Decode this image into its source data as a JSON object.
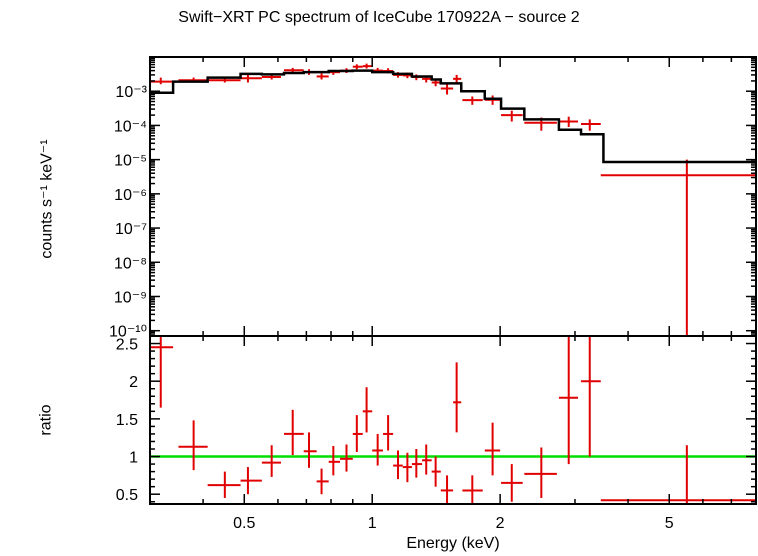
{
  "title": "Swift−XRT PC spectrum of IceCube 170922A − source 2",
  "colors": {
    "data": "#e00000",
    "model": "#000000",
    "unity_line": "#00dd00",
    "axes": "#000000"
  },
  "chart_data": [
    {
      "type": "scatter",
      "panel": "spectrum",
      "xlabel": "Energy (keV)",
      "ylabel": "counts s⁻¹ keV⁻¹",
      "xscale": "log",
      "yscale": "log",
      "xlim": [
        0.3,
        8.0
      ],
      "ylim": [
        7e-11,
        0.01
      ],
      "y_tick_values": [
        0.001,
        0.0001,
        1e-05,
        1e-06,
        1e-07,
        1e-08,
        1e-09,
        1e-10
      ],
      "y_tick_labels": [
        "10⁻³",
        "10⁻⁴",
        "10⁻⁵",
        "10⁻⁶",
        "10⁻⁷",
        "10⁻⁸",
        "10⁻⁹",
        "10⁻¹⁰"
      ],
      "series": [
        {
          "role": "data",
          "points": [
            {
              "x": 0.318,
              "xlo": 0.3,
              "xhi": 0.34,
              "y": 0.0019,
              "ylo": 0.0016,
              "yhi": 0.0025
            },
            {
              "x": 0.38,
              "xlo": 0.35,
              "xhi": 0.41,
              "y": 0.0021,
              "ylo": 0.0018,
              "yhi": 0.0025
            },
            {
              "x": 0.45,
              "xlo": 0.41,
              "xhi": 0.49,
              "y": 0.0021,
              "ylo": 0.0018,
              "yhi": 0.0025
            },
            {
              "x": 0.51,
              "xlo": 0.49,
              "xhi": 0.55,
              "y": 0.0024,
              "ylo": 0.0018,
              "yhi": 0.0031
            },
            {
              "x": 0.58,
              "xlo": 0.55,
              "xhi": 0.61,
              "y": 0.0026,
              "ylo": 0.0022,
              "yhi": 0.0032
            },
            {
              "x": 0.65,
              "xlo": 0.62,
              "xhi": 0.69,
              "y": 0.0041,
              "ylo": 0.0034,
              "yhi": 0.0048
            },
            {
              "x": 0.71,
              "xlo": 0.69,
              "xhi": 0.74,
              "y": 0.0036,
              "ylo": 0.003,
              "yhi": 0.0044
            },
            {
              "x": 0.76,
              "xlo": 0.74,
              "xhi": 0.79,
              "y": 0.0027,
              "ylo": 0.0022,
              "yhi": 0.0033
            },
            {
              "x": 0.81,
              "xlo": 0.79,
              "xhi": 0.84,
              "y": 0.0036,
              "ylo": 0.003,
              "yhi": 0.0042
            },
            {
              "x": 0.87,
              "xlo": 0.84,
              "xhi": 0.9,
              "y": 0.004,
              "ylo": 0.0034,
              "yhi": 0.0047
            },
            {
              "x": 0.92,
              "xlo": 0.9,
              "xhi": 0.95,
              "y": 0.0052,
              "ylo": 0.0044,
              "yhi": 0.0061
            },
            {
              "x": 0.97,
              "xlo": 0.95,
              "xhi": 1.0,
              "y": 0.0054,
              "ylo": 0.0046,
              "yhi": 0.0064
            },
            {
              "x": 1.03,
              "xlo": 1.0,
              "xhi": 1.06,
              "y": 0.004,
              "ylo": 0.0034,
              "yhi": 0.0048
            },
            {
              "x": 1.09,
              "xlo": 1.06,
              "xhi": 1.12,
              "y": 0.0039,
              "ylo": 0.0033,
              "yhi": 0.0047
            },
            {
              "x": 1.15,
              "xlo": 1.12,
              "xhi": 1.18,
              "y": 0.003,
              "ylo": 0.0025,
              "yhi": 0.0036
            },
            {
              "x": 1.21,
              "xlo": 1.18,
              "xhi": 1.24,
              "y": 0.0029,
              "ylo": 0.0024,
              "yhi": 0.0035
            },
            {
              "x": 1.27,
              "xlo": 1.24,
              "xhi": 1.31,
              "y": 0.0026,
              "ylo": 0.0021,
              "yhi": 0.0031
            },
            {
              "x": 1.34,
              "xlo": 1.31,
              "xhi": 1.38,
              "y": 0.0023,
              "ylo": 0.0018,
              "yhi": 0.0028
            },
            {
              "x": 1.41,
              "xlo": 1.38,
              "xhi": 1.45,
              "y": 0.0018,
              "ylo": 0.0014,
              "yhi": 0.0023
            },
            {
              "x": 1.5,
              "xlo": 1.45,
              "xhi": 1.55,
              "y": 0.0012,
              "ylo": 0.0008,
              "yhi": 0.0016
            },
            {
              "x": 1.58,
              "xlo": 1.55,
              "xhi": 1.62,
              "y": 0.0023,
              "ylo": 0.0016,
              "yhi": 0.003
            },
            {
              "x": 1.72,
              "xlo": 1.63,
              "xhi": 1.82,
              "y": 0.00055,
              "ylo": 0.0004,
              "yhi": 0.0007
            },
            {
              "x": 1.92,
              "xlo": 1.84,
              "xhi": 2.0,
              "y": 0.00056,
              "ylo": 0.0004,
              "yhi": 0.00075
            },
            {
              "x": 2.13,
              "xlo": 2.01,
              "xhi": 2.26,
              "y": 0.0002,
              "ylo": 0.00013,
              "yhi": 0.00027
            },
            {
              "x": 2.5,
              "xlo": 2.28,
              "xhi": 2.72,
              "y": 0.00012,
              "ylo": 7e-05,
              "yhi": 0.00017
            },
            {
              "x": 2.9,
              "xlo": 2.75,
              "xhi": 3.05,
              "y": 0.00013,
              "ylo": 9e-05,
              "yhi": 0.00018
            },
            {
              "x": 3.25,
              "xlo": 3.1,
              "xhi": 3.45,
              "y": 0.00011,
              "ylo": 7e-05,
              "yhi": 0.00015
            },
            {
              "x": 5.5,
              "xlo": 3.45,
              "xhi": 8.0,
              "y": 3.5e-06,
              "ylo": 7e-11,
              "yhi": 1e-05
            }
          ]
        },
        {
          "role": "model",
          "steps": [
            {
              "x0": 0.3,
              "x1": 0.34,
              "y": 0.0009
            },
            {
              "x0": 0.34,
              "x1": 0.41,
              "y": 0.0019
            },
            {
              "x0": 0.41,
              "x1": 0.49,
              "y": 0.0025
            },
            {
              "x0": 0.49,
              "x1": 0.55,
              "y": 0.0032
            },
            {
              "x0": 0.55,
              "x1": 0.62,
              "y": 0.0031
            },
            {
              "x0": 0.62,
              "x1": 0.69,
              "y": 0.0034
            },
            {
              "x0": 0.69,
              "x1": 0.79,
              "y": 0.0036
            },
            {
              "x0": 0.79,
              "x1": 0.9,
              "y": 0.0039
            },
            {
              "x0": 0.9,
              "x1": 1.0,
              "y": 0.004
            },
            {
              "x0": 1.0,
              "x1": 1.12,
              "y": 0.0036
            },
            {
              "x0": 1.12,
              "x1": 1.24,
              "y": 0.0032
            },
            {
              "x0": 1.24,
              "x1": 1.38,
              "y": 0.0027
            },
            {
              "x0": 1.38,
              "x1": 1.45,
              "y": 0.0022
            },
            {
              "x0": 1.45,
              "x1": 1.62,
              "y": 0.0017
            },
            {
              "x0": 1.62,
              "x1": 1.84,
              "y": 0.001
            },
            {
              "x0": 1.84,
              "x1": 2.01,
              "y": 0.0006
            },
            {
              "x0": 2.01,
              "x1": 2.28,
              "y": 0.00031
            },
            {
              "x0": 2.28,
              "x1": 2.75,
              "y": 0.00015
            },
            {
              "x0": 2.75,
              "x1": 3.1,
              "y": 7.5e-05
            },
            {
              "x0": 3.1,
              "x1": 3.5,
              "y": 5.5e-05
            },
            {
              "x0": 3.5,
              "x1": 8.0,
              "y": 8.5e-06
            }
          ]
        }
      ]
    },
    {
      "type": "scatter",
      "panel": "ratio",
      "xlabel": "Energy (keV)",
      "ylabel": "ratio",
      "xscale": "log",
      "xlim": [
        0.3,
        8.0
      ],
      "ylim": [
        0.37,
        2.6
      ],
      "x_tick_values": [
        0.5,
        1,
        2,
        5
      ],
      "x_tick_labels": [
        "0.5",
        "1",
        "2",
        "5"
      ],
      "y_tick_values": [
        0.5,
        1,
        1.5,
        2,
        2.5
      ],
      "y_tick_labels": [
        "0.5",
        "1",
        "1.5",
        "2",
        "2.5"
      ],
      "reference_line": 1,
      "series": [
        {
          "role": "data",
          "points": [
            {
              "x": 0.318,
              "xlo": 0.3,
              "xhi": 0.34,
              "y": 2.45,
              "ylo": 1.65,
              "yhi": 2.6
            },
            {
              "x": 0.38,
              "xlo": 0.35,
              "xhi": 0.41,
              "y": 1.13,
              "ylo": 0.82,
              "yhi": 1.48
            },
            {
              "x": 0.45,
              "xlo": 0.41,
              "xhi": 0.49,
              "y": 0.62,
              "ylo": 0.45,
              "yhi": 0.8
            },
            {
              "x": 0.51,
              "xlo": 0.49,
              "xhi": 0.55,
              "y": 0.68,
              "ylo": 0.5,
              "yhi": 0.86
            },
            {
              "x": 0.58,
              "xlo": 0.55,
              "xhi": 0.61,
              "y": 0.92,
              "ylo": 0.73,
              "yhi": 1.15
            },
            {
              "x": 0.65,
              "xlo": 0.62,
              "xhi": 0.69,
              "y": 1.3,
              "ylo": 1.02,
              "yhi": 1.62
            },
            {
              "x": 0.71,
              "xlo": 0.69,
              "xhi": 0.74,
              "y": 1.07,
              "ylo": 0.85,
              "yhi": 1.32
            },
            {
              "x": 0.76,
              "xlo": 0.74,
              "xhi": 0.79,
              "y": 0.67,
              "ylo": 0.5,
              "yhi": 0.84
            },
            {
              "x": 0.81,
              "xlo": 0.79,
              "xhi": 0.84,
              "y": 0.93,
              "ylo": 0.75,
              "yhi": 1.14
            },
            {
              "x": 0.87,
              "xlo": 0.84,
              "xhi": 0.9,
              "y": 0.97,
              "ylo": 0.8,
              "yhi": 1.16
            },
            {
              "x": 0.92,
              "xlo": 0.9,
              "xhi": 0.95,
              "y": 1.3,
              "ylo": 1.06,
              "yhi": 1.55
            },
            {
              "x": 0.97,
              "xlo": 0.95,
              "xhi": 1.0,
              "y": 1.6,
              "ylo": 1.32,
              "yhi": 1.92
            },
            {
              "x": 1.03,
              "xlo": 1.0,
              "xhi": 1.06,
              "y": 1.08,
              "ylo": 0.88,
              "yhi": 1.3
            },
            {
              "x": 1.09,
              "xlo": 1.06,
              "xhi": 1.12,
              "y": 1.3,
              "ylo": 1.08,
              "yhi": 1.55
            },
            {
              "x": 1.15,
              "xlo": 1.12,
              "xhi": 1.18,
              "y": 0.88,
              "ylo": 0.7,
              "yhi": 1.08
            },
            {
              "x": 1.21,
              "xlo": 1.18,
              "xhi": 1.24,
              "y": 0.86,
              "ylo": 0.66,
              "yhi": 1.05
            },
            {
              "x": 1.27,
              "xlo": 1.24,
              "xhi": 1.31,
              "y": 0.9,
              "ylo": 0.72,
              "yhi": 1.1
            },
            {
              "x": 1.34,
              "xlo": 1.31,
              "xhi": 1.38,
              "y": 0.95,
              "ylo": 0.76,
              "yhi": 1.16
            },
            {
              "x": 1.41,
              "xlo": 1.38,
              "xhi": 1.45,
              "y": 0.8,
              "ylo": 0.6,
              "yhi": 1.0
            },
            {
              "x": 1.5,
              "xlo": 1.45,
              "xhi": 1.55,
              "y": 0.55,
              "ylo": 0.38,
              "yhi": 0.75
            },
            {
              "x": 1.58,
              "xlo": 1.55,
              "xhi": 1.62,
              "y": 1.72,
              "ylo": 1.32,
              "yhi": 2.25
            },
            {
              "x": 1.72,
              "xlo": 1.63,
              "xhi": 1.82,
              "y": 0.55,
              "ylo": 0.38,
              "yhi": 0.75
            },
            {
              "x": 1.92,
              "xlo": 1.84,
              "xhi": 2.0,
              "y": 1.08,
              "ylo": 0.75,
              "yhi": 1.45
            },
            {
              "x": 2.13,
              "xlo": 2.01,
              "xhi": 2.26,
              "y": 0.65,
              "ylo": 0.4,
              "yhi": 0.9
            },
            {
              "x": 2.5,
              "xlo": 2.28,
              "xhi": 2.72,
              "y": 0.77,
              "ylo": 0.45,
              "yhi": 1.12
            },
            {
              "x": 2.9,
              "xlo": 2.75,
              "xhi": 3.05,
              "y": 1.78,
              "ylo": 0.9,
              "yhi": 2.6
            },
            {
              "x": 3.25,
              "xlo": 3.1,
              "xhi": 3.45,
              "y": 2.0,
              "ylo": 1.0,
              "yhi": 2.6
            },
            {
              "x": 5.5,
              "xlo": 3.45,
              "xhi": 8.0,
              "y": 0.42,
              "ylo": 0.37,
              "yhi": 1.15
            }
          ]
        }
      ]
    }
  ]
}
